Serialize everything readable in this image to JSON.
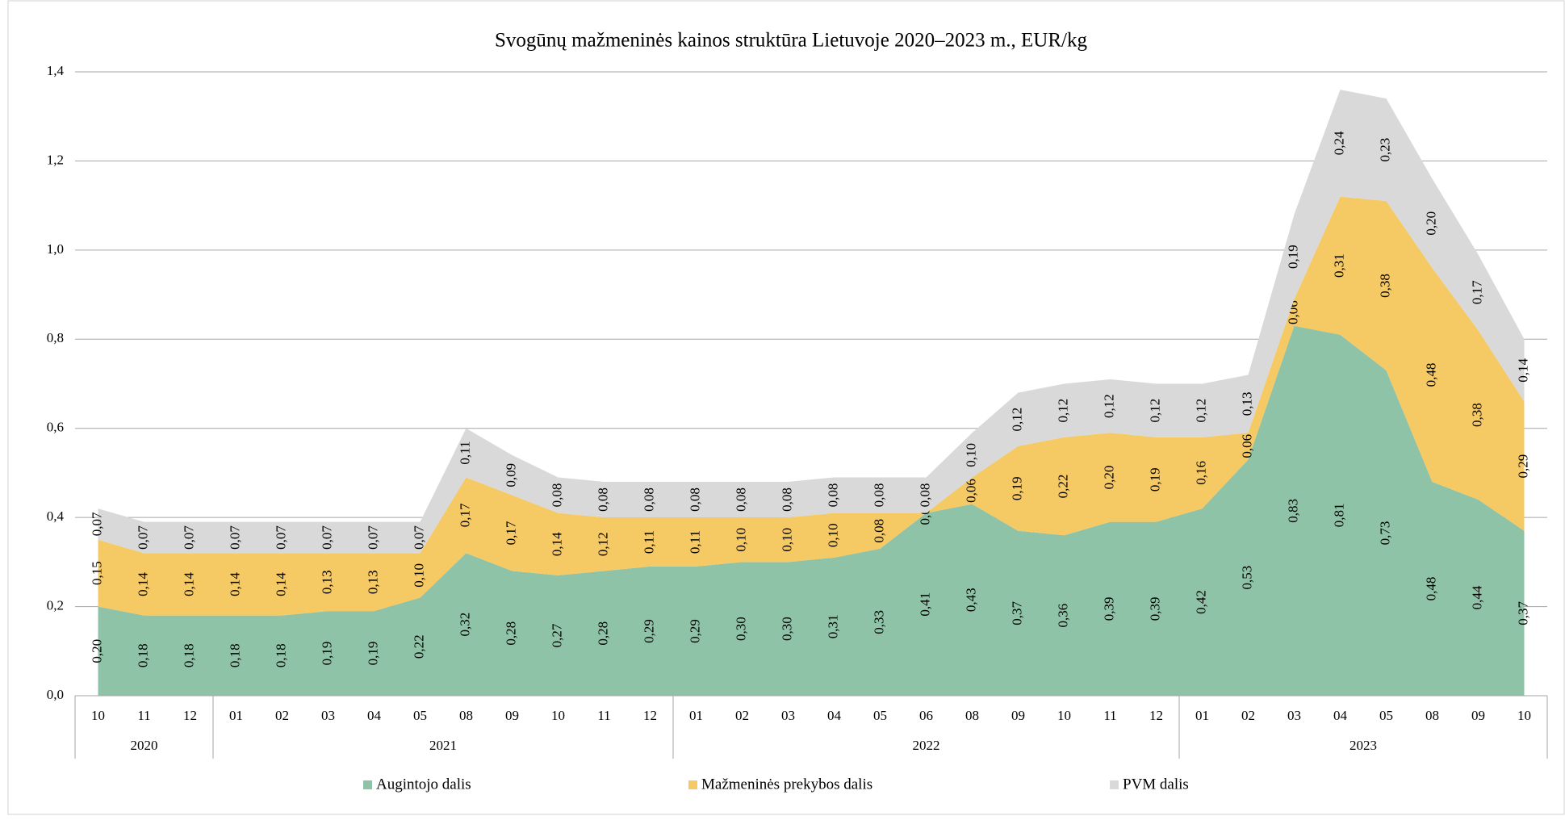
{
  "chart_data": {
    "type": "stacked_area",
    "title": "Svogūnų mažmeninės kainos struktūra Lietuvoje 2020–2023 m., EUR/kg",
    "categories": [
      "10",
      "11",
      "12",
      "01",
      "02",
      "03",
      "04",
      "05",
      "08",
      "09",
      "10",
      "11",
      "12",
      "01",
      "02",
      "03",
      "04",
      "05",
      "06",
      "08",
      "09",
      "10",
      "11",
      "12",
      "01",
      "02",
      "03",
      "04",
      "05",
      "08",
      "09",
      "10"
    ],
    "x_groups": [
      {
        "label": "2020",
        "span": 3
      },
      {
        "label": "2021",
        "span": 10
      },
      {
        "label": "2022",
        "span": 11
      },
      {
        "label": "2023",
        "span": 8
      }
    ],
    "series": [
      {
        "name": "Augintojo dalis",
        "color": "#8fc3a7",
        "values": [
          0.2,
          0.18,
          0.18,
          0.18,
          0.18,
          0.19,
          0.19,
          0.22,
          0.32,
          0.28,
          0.27,
          0.28,
          0.29,
          0.29,
          0.3,
          0.3,
          0.31,
          0.33,
          0.41,
          0.43,
          0.37,
          0.36,
          0.39,
          0.39,
          0.42,
          0.53,
          0.83,
          0.81,
          0.73,
          0.48,
          0.44,
          0.37
        ],
        "value_labels": [
          "0,20",
          "0,18",
          "0,18",
          "0,18",
          "0,18",
          "0,19",
          "0,19",
          "0,22",
          "0,32",
          "0,28",
          "0,27",
          "0,28",
          "0,29",
          "0,29",
          "0,30",
          "0,30",
          "0,31",
          "0,33",
          "0,41",
          "0,43",
          "0,37",
          "0,36",
          "0,39",
          "0,39",
          "0,42",
          "0,53",
          "0,83",
          "0,81",
          "0,73",
          "0,48",
          "0,44",
          "0,37"
        ]
      },
      {
        "name": "Mažmeninės prekybos dalis",
        "color": "#f5c963",
        "values": [
          0.15,
          0.14,
          0.14,
          0.14,
          0.14,
          0.13,
          0.13,
          0.1,
          0.17,
          0.17,
          0.14,
          0.12,
          0.11,
          0.11,
          0.1,
          0.1,
          0.1,
          0.08,
          0.0,
          0.06,
          0.19,
          0.22,
          0.2,
          0.19,
          0.16,
          0.06,
          0.06,
          0.31,
          0.38,
          0.48,
          0.38,
          0.29
        ],
        "value_labels": [
          "0,15",
          "0,14",
          "0,14",
          "0,14",
          "0,14",
          "0,13",
          "0,13",
          "0,10",
          "0,17",
          "0,17",
          "0,14",
          "0,12",
          "0,11",
          "0,11",
          "0,10",
          "0,10",
          "0,10",
          "0,08",
          "0,00",
          "0,06",
          "0,19",
          "0,22",
          "0,20",
          "0,19",
          "0,16",
          "0,06",
          "0,06",
          "0,31",
          "0,38",
          "0,48",
          "0,38",
          "0,29"
        ]
      },
      {
        "name": "PVM dalis",
        "color": "#d9d9d9",
        "values": [
          0.07,
          0.07,
          0.07,
          0.07,
          0.07,
          0.07,
          0.07,
          0.07,
          0.11,
          0.09,
          0.08,
          0.08,
          0.08,
          0.08,
          0.08,
          0.08,
          0.08,
          0.08,
          0.08,
          0.1,
          0.12,
          0.12,
          0.12,
          0.12,
          0.12,
          0.13,
          0.19,
          0.24,
          0.23,
          0.2,
          0.17,
          0.14
        ],
        "value_labels": [
          "0,07",
          "0,07",
          "0,07",
          "0,07",
          "0,07",
          "0,07",
          "0,07",
          "0,07",
          "0,11",
          "0,09",
          "0,08",
          "0,08",
          "0,08",
          "0,08",
          "0,08",
          "0,08",
          "0,08",
          "0,08",
          "0,08",
          "0,10",
          "0,12",
          "0,12",
          "0,12",
          "0,12",
          "0,12",
          "0,13",
          "0,19",
          "0,24",
          "0,23",
          "0,20",
          "0,17",
          "0,14"
        ]
      }
    ],
    "ylim": [
      0,
      1.4
    ],
    "yticks": [
      {
        "value": 0,
        "label": "0,0"
      },
      {
        "value": 0.2,
        "label": "0,2"
      },
      {
        "value": 0.4,
        "label": "0,4"
      },
      {
        "value": 0.6,
        "label": "0,6"
      },
      {
        "value": 0.8,
        "label": "0,8"
      },
      {
        "value": 1.0,
        "label": "1,0"
      },
      {
        "value": 1.2,
        "label": "1,2"
      },
      {
        "value": 1.4,
        "label": "1,4"
      }
    ],
    "grid": true,
    "legend": "bottom"
  }
}
